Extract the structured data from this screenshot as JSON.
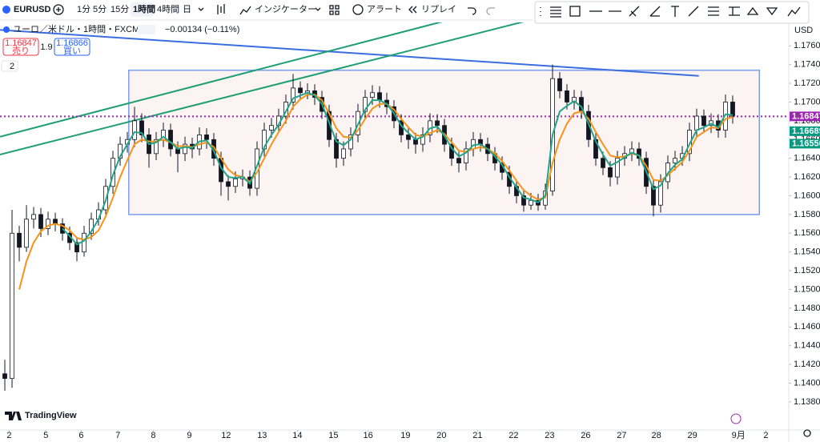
{
  "toolbar": {
    "symbol": "EURUSD",
    "intervals": [
      "1分",
      "5分",
      "15分",
      "1時間",
      "4時間",
      "日"
    ],
    "selected_interval": 3,
    "indicators": "インジケーター",
    "alert": "アラート",
    "replay": "リプレイ"
  },
  "legend": {
    "title": "ユーロ／米ドル・1時間・FXCM",
    "change": "−0.00134 (−0.11%)",
    "sell_price": "1.16847",
    "sell_label": "売り",
    "spread": "1.9",
    "buy_price": "1.16866",
    "buy_label": "買い",
    "collapsed_count": "2"
  },
  "branding": "TradingView",
  "chart_data": {
    "type": "candlestick",
    "currency": "USD",
    "xlim": [
      -0.67,
      108.78
    ],
    "ylim": [
      1.135,
      1.1785
    ],
    "xticks": [
      {
        "value": 0.6,
        "label": "2"
      },
      {
        "value": 5.7,
        "label": "5"
      },
      {
        "value": 10.6,
        "label": "6"
      },
      {
        "value": 15.7,
        "label": "7"
      },
      {
        "value": 20.6,
        "label": "8"
      },
      {
        "value": 25.6,
        "label": "9"
      },
      {
        "value": 30.7,
        "label": "12"
      },
      {
        "value": 35.7,
        "label": "13"
      },
      {
        "value": 40.6,
        "label": "14"
      },
      {
        "value": 45.6,
        "label": "15"
      },
      {
        "value": 50.4,
        "label": "16"
      },
      {
        "value": 55.6,
        "label": "19"
      },
      {
        "value": 60.6,
        "label": "20"
      },
      {
        "value": 65.6,
        "label": "21"
      },
      {
        "value": 70.6,
        "label": "22"
      },
      {
        "value": 75.6,
        "label": "23"
      },
      {
        "value": 80.6,
        "label": "26"
      },
      {
        "value": 85.6,
        "label": "27"
      },
      {
        "value": 90.4,
        "label": "28"
      },
      {
        "value": 95.4,
        "label": "29"
      },
      {
        "value": 101.8,
        "label": "9月"
      },
      {
        "value": 105.6,
        "label": "2"
      }
    ],
    "yticks": [
      {
        "value": 1.138,
        "label": "1.13800"
      },
      {
        "value": 1.14,
        "label": "1.14000"
      },
      {
        "value": 1.142,
        "label": "1.14200"
      },
      {
        "value": 1.144,
        "label": "1.14400"
      },
      {
        "value": 1.146,
        "label": "1.14600"
      },
      {
        "value": 1.148,
        "label": "1.14800"
      },
      {
        "value": 1.15,
        "label": "1.15000"
      },
      {
        "value": 1.152,
        "label": "1.15200"
      },
      {
        "value": 1.154,
        "label": "1.15400"
      },
      {
        "value": 1.156,
        "label": "1.15600"
      },
      {
        "value": 1.158,
        "label": "1.15800"
      },
      {
        "value": 1.16,
        "label": "1.16000"
      },
      {
        "value": 1.162,
        "label": "1.16200"
      },
      {
        "value": 1.164,
        "label": "1.16400"
      },
      {
        "value": 1.166,
        "label": "1.16600"
      },
      {
        "value": 1.168,
        "label": "1.16800"
      },
      {
        "value": 1.17,
        "label": "1.17000"
      },
      {
        "value": 1.172,
        "label": "1.17200"
      },
      {
        "value": 1.174,
        "label": "1.17400"
      },
      {
        "value": 1.176,
        "label": "1.17600"
      }
    ],
    "grid": false,
    "up_color": "#ffffff",
    "down_color": "#131722",
    "candles": [
      [
        1.141,
        1.1425,
        1.1392,
        1.1405
      ],
      [
        1.1405,
        1.1585,
        1.1395,
        1.156
      ],
      [
        1.156,
        1.1568,
        1.153,
        1.1545
      ],
      [
        1.1545,
        1.159,
        1.154,
        1.1575
      ],
      [
        1.1575,
        1.1588,
        1.1565,
        1.158
      ],
      [
        1.158,
        1.1587,
        1.1556,
        1.1565
      ],
      [
        1.1565,
        1.1583,
        1.1558,
        1.1575
      ],
      [
        1.1575,
        1.1582,
        1.1562,
        1.157
      ],
      [
        1.157,
        1.1576,
        1.1552,
        1.156
      ],
      [
        1.156,
        1.1567,
        1.1542,
        1.155
      ],
      [
        1.155,
        1.1556,
        1.153,
        1.154
      ],
      [
        1.154,
        1.1568,
        1.1535,
        1.156
      ],
      [
        1.156,
        1.1582,
        1.1553,
        1.1575
      ],
      [
        1.1575,
        1.1593,
        1.1568,
        1.1585
      ],
      [
        1.1585,
        1.1618,
        1.1578,
        1.161
      ],
      [
        1.161,
        1.1648,
        1.1602,
        1.164
      ],
      [
        1.164,
        1.1663,
        1.1632,
        1.1655
      ],
      [
        1.1655,
        1.1668,
        1.1646,
        1.166
      ],
      [
        1.166,
        1.1695,
        1.1652,
        1.168
      ],
      [
        1.168,
        1.1688,
        1.1657,
        1.1665
      ],
      [
        1.1665,
        1.1672,
        1.163,
        1.1645
      ],
      [
        1.1645,
        1.1668,
        1.1638,
        1.166
      ],
      [
        1.166,
        1.1678,
        1.1652,
        1.167
      ],
      [
        1.167,
        1.1677,
        1.1642,
        1.165
      ],
      [
        1.165,
        1.1658,
        1.1625,
        1.1645
      ],
      [
        1.1645,
        1.1663,
        1.1637,
        1.1655
      ],
      [
        1.1655,
        1.1662,
        1.164,
        1.165
      ],
      [
        1.165,
        1.1673,
        1.1643,
        1.1665
      ],
      [
        1.1665,
        1.1672,
        1.165,
        1.166
      ],
      [
        1.166,
        1.1667,
        1.1632,
        1.164
      ],
      [
        1.164,
        1.1647,
        1.16,
        1.1615
      ],
      [
        1.1615,
        1.1622,
        1.1595,
        1.161
      ],
      [
        1.161,
        1.1626,
        1.1603,
        1.1618
      ],
      [
        1.1618,
        1.1628,
        1.161,
        1.162
      ],
      [
        1.162,
        1.1627,
        1.16,
        1.1608
      ],
      [
        1.1608,
        1.1658,
        1.16,
        1.165
      ],
      [
        1.165,
        1.1678,
        1.1642,
        1.167
      ],
      [
        1.167,
        1.1683,
        1.1662,
        1.1675
      ],
      [
        1.1675,
        1.1693,
        1.1667,
        1.1685
      ],
      [
        1.1685,
        1.1708,
        1.1677,
        1.17
      ],
      [
        1.17,
        1.173,
        1.1692,
        1.1715
      ],
      [
        1.1715,
        1.1722,
        1.1702,
        1.171
      ],
      [
        1.171,
        1.172,
        1.1703,
        1.1712
      ],
      [
        1.1712,
        1.1719,
        1.1697,
        1.1705
      ],
      [
        1.1705,
        1.1712,
        1.1682,
        1.169
      ],
      [
        1.169,
        1.1697,
        1.1652,
        1.166
      ],
      [
        1.166,
        1.1667,
        1.163,
        1.164
      ],
      [
        1.164,
        1.1658,
        1.1632,
        1.165
      ],
      [
        1.165,
        1.1673,
        1.1642,
        1.1665
      ],
      [
        1.1665,
        1.1698,
        1.1657,
        1.169
      ],
      [
        1.169,
        1.1713,
        1.1682,
        1.1705
      ],
      [
        1.1705,
        1.1718,
        1.1697,
        1.171
      ],
      [
        1.171,
        1.1717,
        1.1694,
        1.1702
      ],
      [
        1.1702,
        1.171,
        1.1687,
        1.1695
      ],
      [
        1.1695,
        1.1702,
        1.1672,
        1.168
      ],
      [
        1.168,
        1.1687,
        1.1657,
        1.1665
      ],
      [
        1.1665,
        1.1672,
        1.165,
        1.166
      ],
      [
        1.166,
        1.1667,
        1.1645,
        1.1655
      ],
      [
        1.1655,
        1.1673,
        1.1647,
        1.1665
      ],
      [
        1.1665,
        1.1688,
        1.1657,
        1.168
      ],
      [
        1.168,
        1.1687,
        1.1667,
        1.1675
      ],
      [
        1.1675,
        1.1682,
        1.1647,
        1.1655
      ],
      [
        1.1655,
        1.1662,
        1.1632,
        1.164
      ],
      [
        1.164,
        1.1647,
        1.1625,
        1.1635
      ],
      [
        1.1635,
        1.1658,
        1.1627,
        1.165
      ],
      [
        1.165,
        1.1668,
        1.1642,
        1.166
      ],
      [
        1.166,
        1.1667,
        1.1647,
        1.1655
      ],
      [
        1.1655,
        1.1662,
        1.1637,
        1.1645
      ],
      [
        1.1645,
        1.1652,
        1.1627,
        1.1635
      ],
      [
        1.1635,
        1.1642,
        1.1617,
        1.1625
      ],
      [
        1.1625,
        1.1632,
        1.1602,
        1.161
      ],
      [
        1.161,
        1.1617,
        1.1592,
        1.16
      ],
      [
        1.16,
        1.1607,
        1.1583,
        1.159
      ],
      [
        1.159,
        1.1603,
        1.1585,
        1.1595
      ],
      [
        1.1595,
        1.1602,
        1.1584,
        1.159
      ],
      [
        1.159,
        1.1613,
        1.1585,
        1.1605
      ],
      [
        1.1605,
        1.174,
        1.16,
        1.1725
      ],
      [
        1.1725,
        1.1732,
        1.1704,
        1.1712
      ],
      [
        1.1712,
        1.1719,
        1.1692,
        1.17
      ],
      [
        1.17,
        1.1713,
        1.1692,
        1.1705
      ],
      [
        1.1705,
        1.1712,
        1.1682,
        1.169
      ],
      [
        1.169,
        1.1697,
        1.1652,
        1.166
      ],
      [
        1.166,
        1.1667,
        1.1632,
        1.164
      ],
      [
        1.164,
        1.1647,
        1.1622,
        1.163
      ],
      [
        1.163,
        1.1637,
        1.161,
        1.162
      ],
      [
        1.162,
        1.1648,
        1.1612,
        1.164
      ],
      [
        1.164,
        1.1653,
        1.1632,
        1.1645
      ],
      [
        1.1645,
        1.1658,
        1.1637,
        1.165
      ],
      [
        1.165,
        1.1657,
        1.1632,
        1.164
      ],
      [
        1.164,
        1.1647,
        1.1602,
        1.161
      ],
      [
        1.161,
        1.1617,
        1.1578,
        1.159
      ],
      [
        1.159,
        1.1623,
        1.1582,
        1.1615
      ],
      [
        1.1615,
        1.1643,
        1.1607,
        1.1635
      ],
      [
        1.1635,
        1.1648,
        1.1627,
        1.164
      ],
      [
        1.164,
        1.1653,
        1.1632,
        1.1645
      ],
      [
        1.1645,
        1.1678,
        1.1637,
        1.167
      ],
      [
        1.167,
        1.1693,
        1.1662,
        1.1685
      ],
      [
        1.1685,
        1.1692,
        1.1667,
        1.1675
      ],
      [
        1.1675,
        1.1688,
        1.1667,
        1.168
      ],
      [
        1.168,
        1.1687,
        1.1662,
        1.167
      ],
      [
        1.167,
        1.1708,
        1.1662,
        1.17
      ],
      [
        1.17,
        1.1707,
        1.1677,
        1.1685
      ]
    ],
    "moving_averages": [
      {
        "color": "#f7931a",
        "values": [
          null,
          null,
          1.15,
          1.153,
          1.155,
          1.1562,
          1.1568,
          1.157,
          1.1568,
          1.1563,
          1.1555,
          1.1553,
          1.1556,
          1.1563,
          1.1578,
          1.1598,
          1.162,
          1.1638,
          1.1655,
          1.166,
          1.1658,
          1.1658,
          1.166,
          1.1657,
          1.1653,
          1.1653,
          1.1652,
          1.1655,
          1.1657,
          1.1652,
          1.164,
          1.1628,
          1.1622,
          1.162,
          1.1615,
          1.1625,
          1.164,
          1.1655,
          1.1668,
          1.168,
          1.1695,
          1.1703,
          1.1708,
          1.1708,
          1.1702,
          1.1688,
          1.1672,
          1.1663,
          1.1662,
          1.167,
          1.1682,
          1.1693,
          1.1698,
          1.1698,
          1.1692,
          1.1682,
          1.1673,
          1.1665,
          1.1663,
          1.1667,
          1.167,
          1.1666,
          1.1657,
          1.1648,
          1.1647,
          1.165,
          1.1652,
          1.165,
          1.1645,
          1.1637,
          1.1627,
          1.1616,
          1.1606,
          1.16,
          1.1596,
          1.1598,
          1.1635,
          1.166,
          1.1677,
          1.1688,
          1.169,
          1.1682,
          1.1668,
          1.1655,
          1.1643,
          1.1641,
          1.1642,
          1.1645,
          1.1643,
          1.1632,
          1.1617,
          1.1616,
          1.1622,
          1.1629,
          1.1636,
          1.1648,
          1.1663,
          1.1668,
          1.1673,
          1.1672,
          1.1682,
          1.1684
        ]
      },
      {
        "color": "#22a38a",
        "values": [
          null,
          null,
          null,
          null,
          null,
          null,
          null,
          null,
          1.1565,
          1.1557,
          1.1548,
          1.1552,
          1.1562,
          1.1575,
          1.1595,
          1.1622,
          1.1642,
          1.1655,
          1.1668,
          1.1667,
          1.1655,
          1.1657,
          1.1663,
          1.1657,
          1.165,
          1.1652,
          1.1651,
          1.1658,
          1.1659,
          1.1648,
          1.163,
          1.162,
          1.1619,
          1.162,
          1.1613,
          1.1632,
          1.1652,
          1.1665,
          1.1676,
          1.169,
          1.1704,
          1.1707,
          1.171,
          1.1707,
          1.1698,
          1.1678,
          1.1658,
          1.1654,
          1.166,
          1.1676,
          1.1692,
          1.1702,
          1.1702,
          1.1698,
          1.1688,
          1.1675,
          1.1667,
          1.166,
          1.1663,
          1.1672,
          1.1674,
          1.1664,
          1.1651,
          1.1642,
          1.1646,
          1.1654,
          1.1655,
          1.165,
          1.1642,
          1.1633,
          1.162,
          1.1609,
          1.1598,
          1.1596,
          1.1593,
          1.16,
          1.1665,
          1.169,
          1.1696,
          1.1701,
          1.1695,
          1.1677,
          1.1658,
          1.1644,
          1.1632,
          1.1636,
          1.1641,
          1.1646,
          1.1643,
          1.1626,
          1.1607,
          1.1611,
          1.1624,
          1.1633,
          1.1639,
          1.1655,
          1.167,
          1.1673,
          1.1677,
          1.1673,
          1.1687,
          1.1686
        ]
      }
    ],
    "drawings": [
      {
        "shape": "rectangle",
        "x": [
          17.2,
          104.7
        ],
        "y": [
          1.1734,
          1.158
        ],
        "color": "#7a9cf0"
      },
      {
        "shape": "trendline",
        "x": [
          -0.67,
          96.3
        ],
        "y": [
          1.1777,
          1.1728
        ],
        "color": "#3a6ee0"
      },
      {
        "shape": "trendline",
        "x": [
          -0.67,
          60.8
        ],
        "y": [
          1.1663,
          1.1786
        ],
        "color": "#1e9e74"
      },
      {
        "shape": "trendline",
        "x": [
          -0.67,
          72.1
        ],
        "y": [
          1.1644,
          1.1786
        ],
        "color": "#1e9e74"
      }
    ],
    "price_lines": [
      {
        "value": 1.16847,
        "color": "#9c27b0",
        "dotted": true
      }
    ],
    "price_labels": [
      {
        "value": 1.16847,
        "color": "#9c27b0"
      },
      {
        "value": 1.16689,
        "color": "#089981"
      },
      {
        "value": 1.16556,
        "color": "#089981"
      }
    ]
  }
}
